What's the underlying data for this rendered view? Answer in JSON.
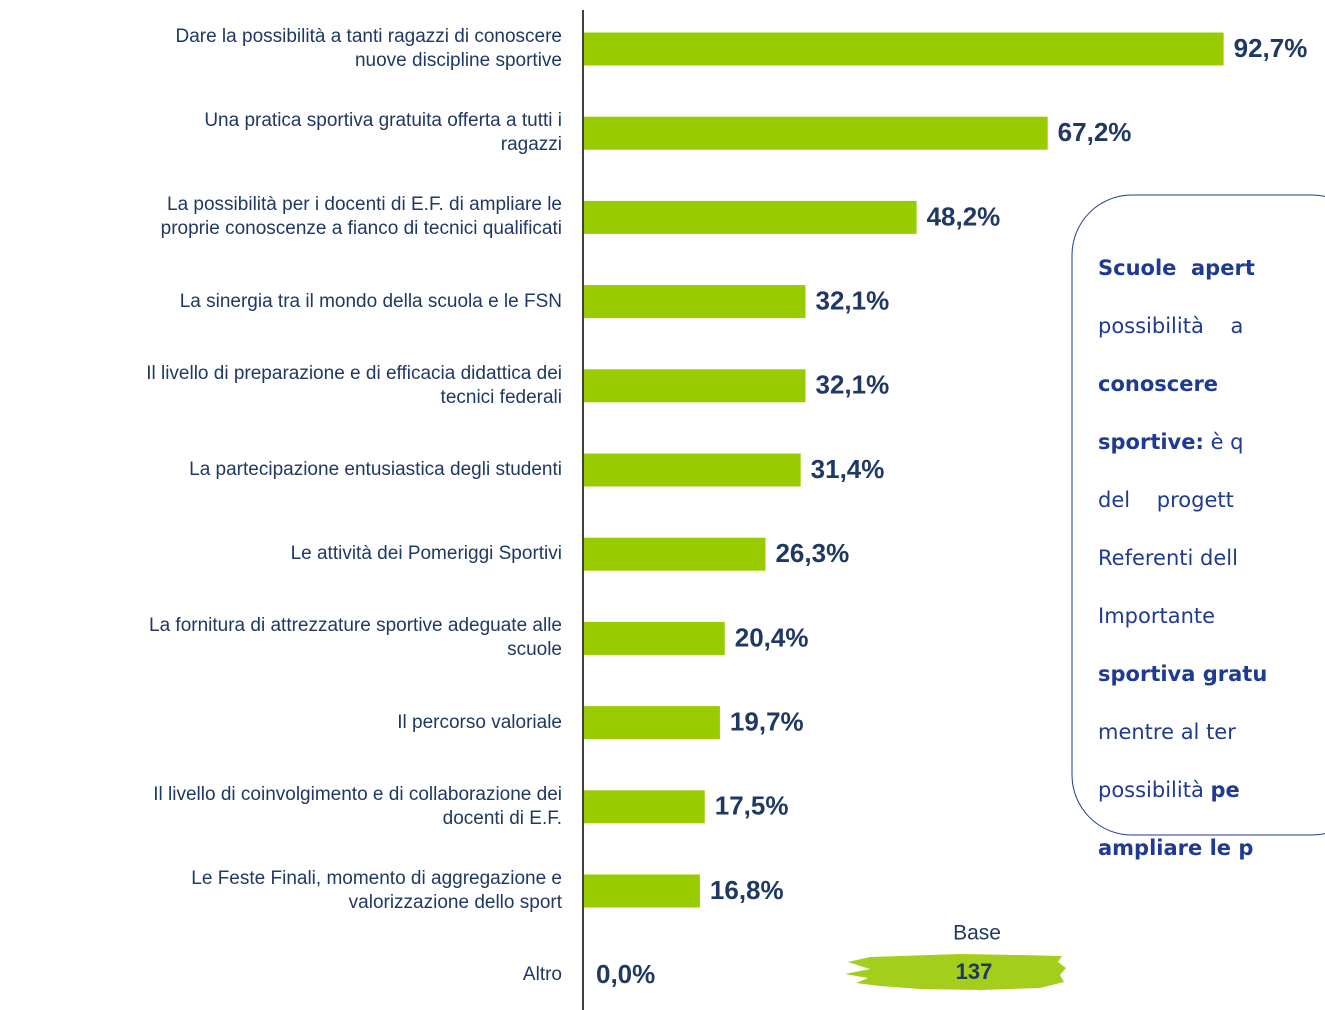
{
  "chart_data": {
    "type": "bar",
    "orientation": "horizontal",
    "categories": [
      "Dare la possibilità  a tanti ragazzi di conoscere\nnuove discipline sportive",
      "Una pratica sportiva gratuita offerta a tutti i\nragazzi",
      "La possibilità  per i docenti di E.F. di ampliare le\nproprie conoscenze a fianco di tecnici qualificati",
      "La sinergia  tra il mondo della scuola e le FSN",
      "Il livello di preparazione e di efficacia didattica dei\ntecnici federali",
      "La partecipazione entusiastica degli studenti",
      "Le attività dei Pomeriggi Sportivi",
      "La fornitura di attrezzature sportive adeguate alle\nscuole",
      "Il percorso valoriale",
      "Il livello di coinvolgimento e di collaborazione dei\ndocenti di E.F.",
      "Le Feste Finali, momento di aggregazione e\nvalorizzazione dello sport",
      "Altro"
    ],
    "values": [
      92.7,
      67.2,
      48.2,
      32.1,
      32.1,
      31.4,
      26.3,
      20.4,
      19.7,
      17.5,
      16.8,
      0.0
    ],
    "value_labels": [
      "92,7%",
      "67,2%",
      "48,2%",
      "32,1%",
      "32,1%",
      "31,4%",
      "26,3%",
      "20,4%",
      "19,7%",
      "17,5%",
      "16,8%",
      "0,0%"
    ],
    "color": "#99cc00",
    "xlim": [
      0,
      100
    ],
    "base": {
      "label": "Base",
      "value": "137"
    },
    "note": {
      "lines": [
        [
          {
            "text": "Scuole  apert",
            "bold": true
          }
        ],
        [
          {
            "text": "possibilità    a",
            "bold": false
          }
        ],
        [
          {
            "text": "conoscere",
            "bold": true
          }
        ],
        [
          {
            "text": "sportive:",
            "bold": true
          },
          {
            "text": " è q",
            "bold": false
          }
        ],
        [
          {
            "text": "del    progett",
            "bold": false
          }
        ],
        [
          {
            "text": "Referenti dell",
            "bold": false
          }
        ],
        [
          {
            "text": "Importante",
            "bold": false
          }
        ],
        [
          {
            "text": "sportiva gratu",
            "bold": true
          }
        ],
        [
          {
            "text": "mentre al ter",
            "bold": false
          }
        ],
        [
          {
            "text": "possibilità ",
            "bold": false
          },
          {
            "text": "pe",
            "bold": true
          }
        ],
        [
          {
            "text": "ampliare le p",
            "bold": true
          }
        ]
      ]
    }
  }
}
